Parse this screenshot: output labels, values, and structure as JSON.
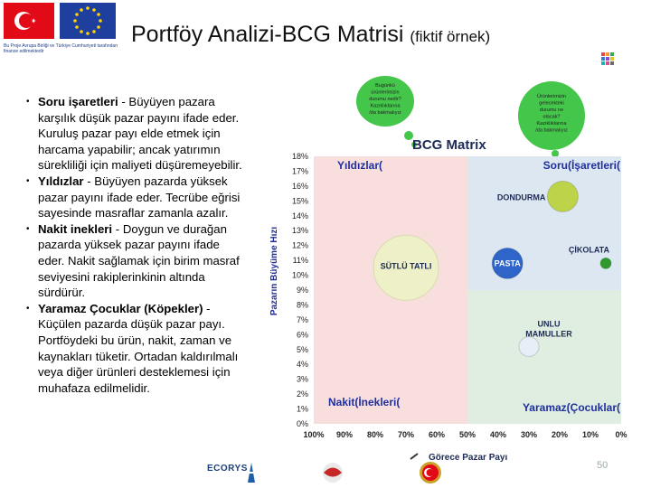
{
  "title": {
    "main": "Portföy Analizi-BCG Matrisi",
    "sub": "(fiktif örnek)"
  },
  "logo_caption": "Bu Proje Avrupa Birliği ve Türkiye Cumhuriyeti tarafından finanse edilmektedir",
  "bullets": [
    {
      "head": "Soru işaretleri",
      "text": " - Büyüyen pazara karşılık düşük pazar payını ifade eder. Kuruluş pazar payı elde etmek için harcama yapabilir; ancak yatırımın sürekliliği için maliyeti düşüremeyebilir."
    },
    {
      "head": "Yıldızlar",
      "text": " - Büyüyen pazarda yüksek pazar payını ifade eder. Tecrübe eğrisi sayesinde masraflar zamanla azalır."
    },
    {
      "head": "Nakit inekleri",
      "text": " - Doygun ve durağan pazarda yüksek pazar payını ifade eder. Nakit sağlamak için birim masraf seviyesini rakiplerinkinin altında sürdürür."
    },
    {
      "head": "Yaramaz Çocuklar (Köpekler)",
      "text": " - Küçülen pazarda düşük pazar payı. Portföydeki bu ürün, nakit, zaman ve kaynakları tüketir. Ortadan kaldırılmalı veya diğer ürünleri desteklemesi için muhafaza edilmelidir."
    }
  ],
  "callouts": {
    "left": [
      "Bugünkü",
      "ürünlerimizin",
      "durumu nedir?",
      "Kazıklıklarına",
      "/da bakmalıyız"
    ],
    "right": [
      "Ürünlerimizin",
      "gelecekteki",
      "durumu ne",
      "olacak?",
      "Kazıklıklarına",
      "/da bakmalıyız"
    ]
  },
  "chart_data": {
    "type": "scatter",
    "title": "BCG Matrix",
    "xlabel": "Görece Pazar Payı",
    "ylabel": "Pazarın Büyüme Hızı",
    "x_ticks": [
      "100%",
      "90%",
      "80%",
      "70%",
      "60%",
      "50%",
      "40%",
      "30%",
      "20%",
      "10%",
      "0%"
    ],
    "y_ticks": [
      "0%",
      "1%",
      "2%",
      "3%",
      "4%",
      "5%",
      "6%",
      "7%",
      "8%",
      "9%",
      "10%",
      "11%",
      "12%",
      "13%",
      "14%",
      "15%",
      "16%",
      "17%",
      "18%"
    ],
    "xlim": [
      100,
      0
    ],
    "ylim": [
      0,
      18
    ],
    "quadrants": {
      "stars": "Yıldızlar(",
      "question_marks": "Soru(İşaretleri(",
      "cash_cows": "Nakit(İnekleri(",
      "dogs": "Yaramaz(Çocuklar("
    },
    "colors": {
      "stars": "#f9dede",
      "question_marks": "#dde7f2",
      "cash_cows": "#f9dede",
      "dogs": "#dfeee0",
      "quadrant_label": "#1f2f9e"
    },
    "points": [
      {
        "name": "SÜTLÜ TATLI",
        "x": 70,
        "y": 10.5,
        "color": "#eef0c8"
      },
      {
        "name": "DONDURMA",
        "x": 19,
        "y": 15.3,
        "color": "#bcd34a"
      },
      {
        "name": "PASTA",
        "x": 37,
        "y": 10.8,
        "color": "#2f64c8"
      },
      {
        "name": "ÇİKOLATA",
        "x": 5,
        "y": 10.8,
        "color": "#2e9a2e"
      },
      {
        "name": "UNLU MAMULLER",
        "x": 30,
        "y": 5.2,
        "color": "#e8eef7"
      }
    ]
  },
  "footer": {
    "ecorys": "ECORYS",
    "page_number": "50"
  }
}
